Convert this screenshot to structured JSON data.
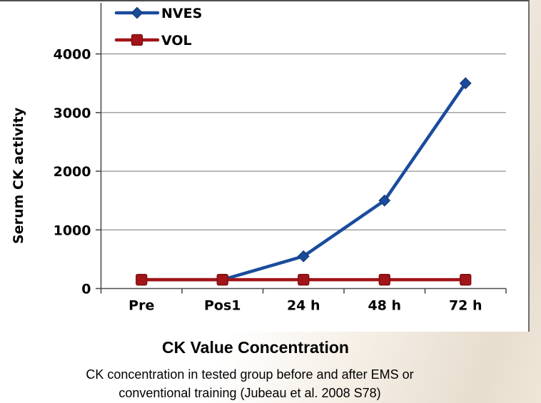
{
  "chart_data": {
    "type": "line",
    "title": "CK Value Concentration",
    "ylabel": "Serum CK activity",
    "xlabel": "",
    "categories": [
      "Pre",
      "Pos1",
      "24 h",
      "48 h",
      "72 h"
    ],
    "yticks": [
      0,
      1000,
      2000,
      3000,
      4000
    ],
    "ylim": [
      0,
      4500
    ],
    "grid": "horizontal",
    "legend_position": "top-left-inside",
    "series": [
      {
        "name": "NVES",
        "marker": "diamond",
        "color": "#1a4c9c",
        "marker_stroke": "#123a75",
        "values": [
          150,
          150,
          550,
          1500,
          3500
        ]
      },
      {
        "name": "VOL",
        "marker": "square",
        "color": "#a21418",
        "marker_stroke": "#7a0e10",
        "values": [
          150,
          150,
          150,
          150,
          150
        ]
      }
    ]
  },
  "caption": {
    "line1": "CK concentration in tested group before and after EMS or",
    "line2": "conventional training (Jubeau et al. 2008 S78)"
  }
}
